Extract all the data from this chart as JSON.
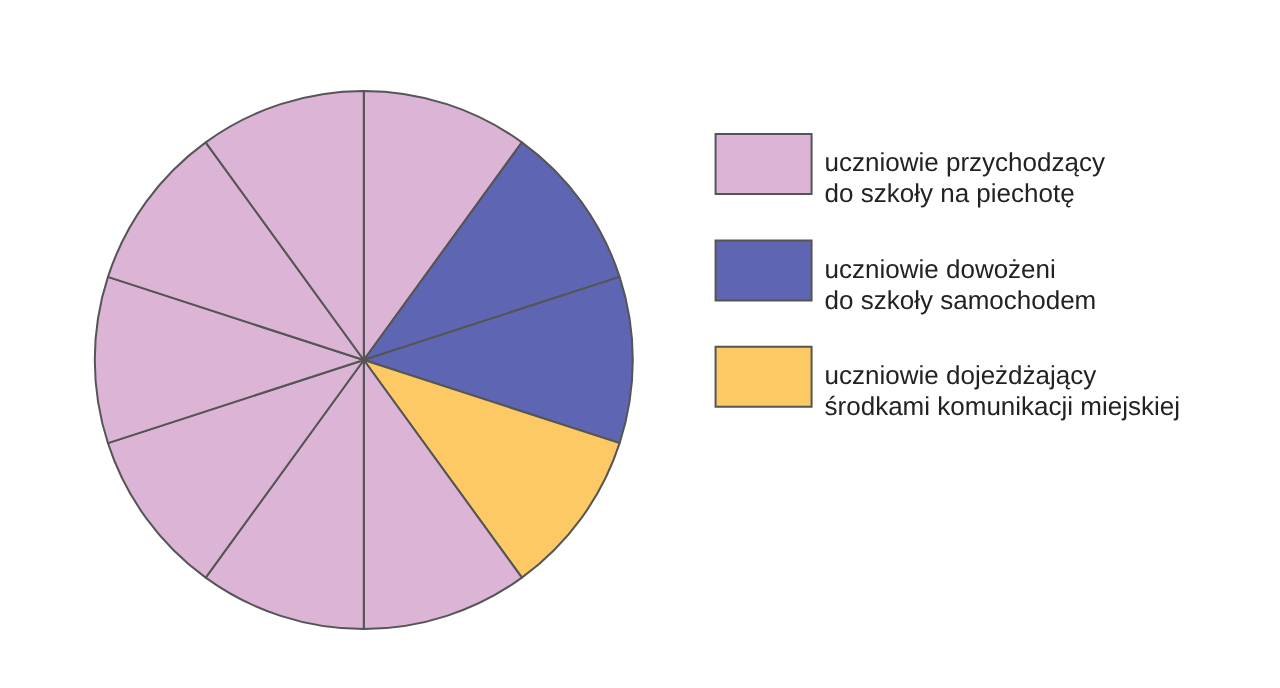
{
  "chart_data": {
    "type": "pie",
    "categories": [
      "uczniowie przychodzący\ndo szkoły na piechotę",
      "uczniowie dowożeni\ndo szkoły samochodem",
      null,
      "uczniowie dojeżdżający\nśrodkami komunikacji miejskiej",
      null,
      null,
      null,
      null,
      null,
      null
    ],
    "values": [
      10,
      10,
      10,
      10,
      10,
      10,
      10,
      10,
      10,
      10
    ],
    "colors": [
      "#dbb4d6",
      "#5e66b3",
      "#5e66b3",
      "#fdc965",
      "#dbb4d6",
      "#dbb4d6",
      "#dbb4d6",
      "#dbb4d6",
      "#dbb4d6",
      "#dbb4d6"
    ],
    "legend": "right"
  }
}
